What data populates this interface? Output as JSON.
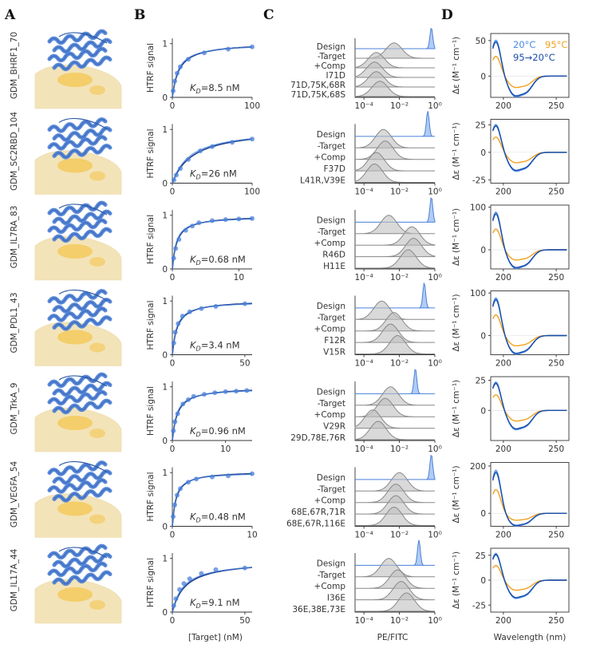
{
  "panel_letters": [
    "A",
    "B",
    "C",
    "D"
  ],
  "colors": {
    "design": "#4a80d9",
    "fit": "#1a3f8f",
    "gray": "#bfbfbf",
    "gray_line": "#888888",
    "heat": "#f0a11e",
    "cool": "#1a4da8",
    "cold": "#4a8ae8",
    "surface": "#f3e3b8",
    "patch": "#f4c54a",
    "ribbon": "#4b7fd6"
  },
  "b_axis": {
    "xlabel": "[Target] (nM)",
    "ylabel": "HTRF signal"
  },
  "c_axis": {
    "xlabel": "PE/FITC",
    "xticks": [
      "10⁻⁴",
      "10⁻²",
      "10⁰"
    ]
  },
  "d_axis": {
    "xlabel": "Wavelength (nm)",
    "ylabel": "Δε (M⁻¹ cm⁻¹)",
    "xticks": [
      "200",
      "250"
    ],
    "xlim": [
      188,
      262
    ]
  },
  "d_legend": {
    "l20": "20°C",
    "l95": "95°C",
    "l9520": "95→20°C"
  },
  "chart_data": [
    {
      "row": 0,
      "name": "GDM_BHRF1_70",
      "kd": "K_D=8.5 nM",
      "kd_nM": 8.5,
      "b_xlim": [
        0,
        100
      ],
      "b_xticks": [
        "0",
        "100"
      ],
      "b_yticks": [
        "0",
        "1"
      ],
      "b_points": [
        [
          1,
          0.12
        ],
        [
          3,
          0.3
        ],
        [
          6,
          0.45
        ],
        [
          10,
          0.57
        ],
        [
          20,
          0.71
        ],
        [
          40,
          0.83
        ],
        [
          70,
          0.9
        ],
        [
          100,
          0.94
        ]
      ],
      "c_labels": [
        "Design",
        "-Target",
        "+Comp",
        "I71D",
        "71D,75K,68R",
        "71D,75K,68S"
      ],
      "c_peaks": [
        -0.2,
        -2.3,
        -3.3,
        -3.4,
        -3.3,
        -3.1
      ],
      "d_ylim": [
        -30,
        60
      ],
      "d_yticks": [
        "50",
        "0"
      ]
    },
    {
      "row": 1,
      "name": "GDM_SC2RBD_104",
      "kd": "K_D=26 nM",
      "kd_nM": 26,
      "b_xlim": [
        0,
        100
      ],
      "b_xticks": [
        "0",
        "100"
      ],
      "b_yticks": [
        "0",
        "1"
      ],
      "b_points": [
        [
          2,
          0.06
        ],
        [
          5,
          0.15
        ],
        [
          10,
          0.27
        ],
        [
          20,
          0.44
        ],
        [
          35,
          0.6
        ],
        [
          50,
          0.68
        ],
        [
          75,
          0.76
        ],
        [
          100,
          0.82
        ]
      ],
      "c_labels": [
        "Design",
        "-Target",
        "+Comp",
        "F37D",
        "L41R,V39E"
      ],
      "c_peaks": [
        -0.4,
        -2.9,
        -2.8,
        -3.3,
        -3.4
      ],
      "d_ylim": [
        -28,
        30
      ],
      "d_yticks": [
        "25",
        "0",
        "-25"
      ]
    },
    {
      "row": 2,
      "name": "GDM_IL7RA_83",
      "kd": "K_D=0.68 nM",
      "kd_nM": 0.68,
      "b_xlim": [
        0,
        12
      ],
      "b_xticks": [
        "0",
        "10"
      ],
      "b_yticks": [
        "0",
        "1"
      ],
      "b_points": [
        [
          0.2,
          0.2
        ],
        [
          0.5,
          0.38
        ],
        [
          1,
          0.55
        ],
        [
          2,
          0.72
        ],
        [
          3,
          0.8
        ],
        [
          4,
          0.86
        ],
        [
          6,
          0.9
        ],
        [
          8,
          0.92
        ],
        [
          10,
          0.93
        ],
        [
          12,
          0.94
        ]
      ],
      "c_labels": [
        "Design",
        "-Target",
        "+Comp",
        "R46D",
        "H11E"
      ],
      "c_peaks": [
        -0.2,
        -2.6,
        -1.3,
        -1.2,
        -1.5
      ],
      "d_ylim": [
        -45,
        105
      ],
      "d_yticks": [
        "100",
        "0"
      ]
    },
    {
      "row": 3,
      "name": "GDM_PDL1_43",
      "kd": "K_D=3.4 nM",
      "kd_nM": 3.4,
      "b_xlim": [
        0,
        55
      ],
      "b_xticks": [
        "0",
        "50"
      ],
      "b_yticks": [
        "0",
        "1"
      ],
      "b_points": [
        [
          1,
          0.22
        ],
        [
          2,
          0.42
        ],
        [
          4,
          0.58
        ],
        [
          7,
          0.72
        ],
        [
          12,
          0.8
        ],
        [
          20,
          0.86
        ],
        [
          30,
          0.9
        ],
        [
          50,
          0.95
        ]
      ],
      "c_labels": [
        "Design",
        "-Target",
        "+Comp",
        "F12R",
        "V15R"
      ],
      "c_peaks": [
        -0.6,
        -3.0,
        -2.3,
        -2.5,
        -2.1
      ],
      "d_ylim": [
        -45,
        105
      ],
      "d_yticks": [
        "100",
        "0"
      ]
    },
    {
      "row": 4,
      "name": "GDM_TrkA_9",
      "kd": "K_D=0.96 nM",
      "kd_nM": 0.96,
      "b_xlim": [
        0,
        15
      ],
      "b_xticks": [
        "0",
        "10"
      ],
      "b_yticks": [
        "0",
        "1"
      ],
      "b_points": [
        [
          0.2,
          0.18
        ],
        [
          0.5,
          0.35
        ],
        [
          1,
          0.5
        ],
        [
          2,
          0.68
        ],
        [
          3,
          0.76
        ],
        [
          4,
          0.82
        ],
        [
          6,
          0.86
        ],
        [
          8,
          0.89
        ],
        [
          10,
          0.91
        ],
        [
          12,
          0.92
        ],
        [
          14,
          0.93
        ]
      ],
      "c_labels": [
        "Design",
        "-Target",
        "+Comp",
        "V29R",
        "29D,78E,76R"
      ],
      "c_peaks": [
        -1.1,
        -2.5,
        -2.8,
        -3.5,
        -3.2
      ],
      "d_ylim": [
        -25,
        28
      ],
      "d_yticks": [
        "25",
        "0"
      ]
    },
    {
      "row": 5,
      "name": "GDM_VEGFA_54",
      "kd": "K_D=0.48 nM",
      "kd_nM": 0.48,
      "b_xlim": [
        0,
        10
      ],
      "b_xticks": [
        "0",
        "10"
      ],
      "b_yticks": [
        "0",
        "1"
      ],
      "b_points": [
        [
          0.1,
          0.18
        ],
        [
          0.3,
          0.4
        ],
        [
          0.6,
          0.58
        ],
        [
          1,
          0.7
        ],
        [
          2,
          0.82
        ],
        [
          3,
          0.88
        ],
        [
          5,
          0.92
        ],
        [
          7,
          0.94
        ],
        [
          10,
          0.98
        ]
      ],
      "c_labels": [
        "Design",
        "-Target",
        "+Comp",
        "68E,67R,71R",
        "68E,67R,116E"
      ],
      "c_peaks": [
        -0.2,
        -2.0,
        -2.2,
        -2.2,
        -2.3
      ],
      "d_ylim": [
        -55,
        215
      ],
      "d_yticks": [
        "200",
        "0"
      ]
    },
    {
      "row": 6,
      "name": "GDM_IL17A_44",
      "kd": "K_D=9.1 nM",
      "kd_nM": 9.1,
      "b_xlim": [
        0,
        55
      ],
      "b_xticks": [
        "0",
        "50"
      ],
      "b_yticks": [
        "0",
        "1"
      ],
      "b_points": [
        [
          1,
          0.12
        ],
        [
          2.5,
          0.25
        ],
        [
          5,
          0.42
        ],
        [
          8,
          0.53
        ],
        [
          12,
          0.62
        ],
        [
          20,
          0.72
        ],
        [
          30,
          0.79
        ],
        [
          50,
          0.82
        ]
      ],
      "c_labels": [
        "Design",
        "-Target",
        "+Comp",
        "I36E",
        "36E,38E,73E"
      ],
      "c_peaks": [
        -0.9,
        -2.6,
        -2.1,
        -1.9,
        -1.6
      ],
      "d_ylim": [
        -32,
        32
      ],
      "d_yticks": [
        "25",
        "0",
        "-25"
      ]
    }
  ]
}
